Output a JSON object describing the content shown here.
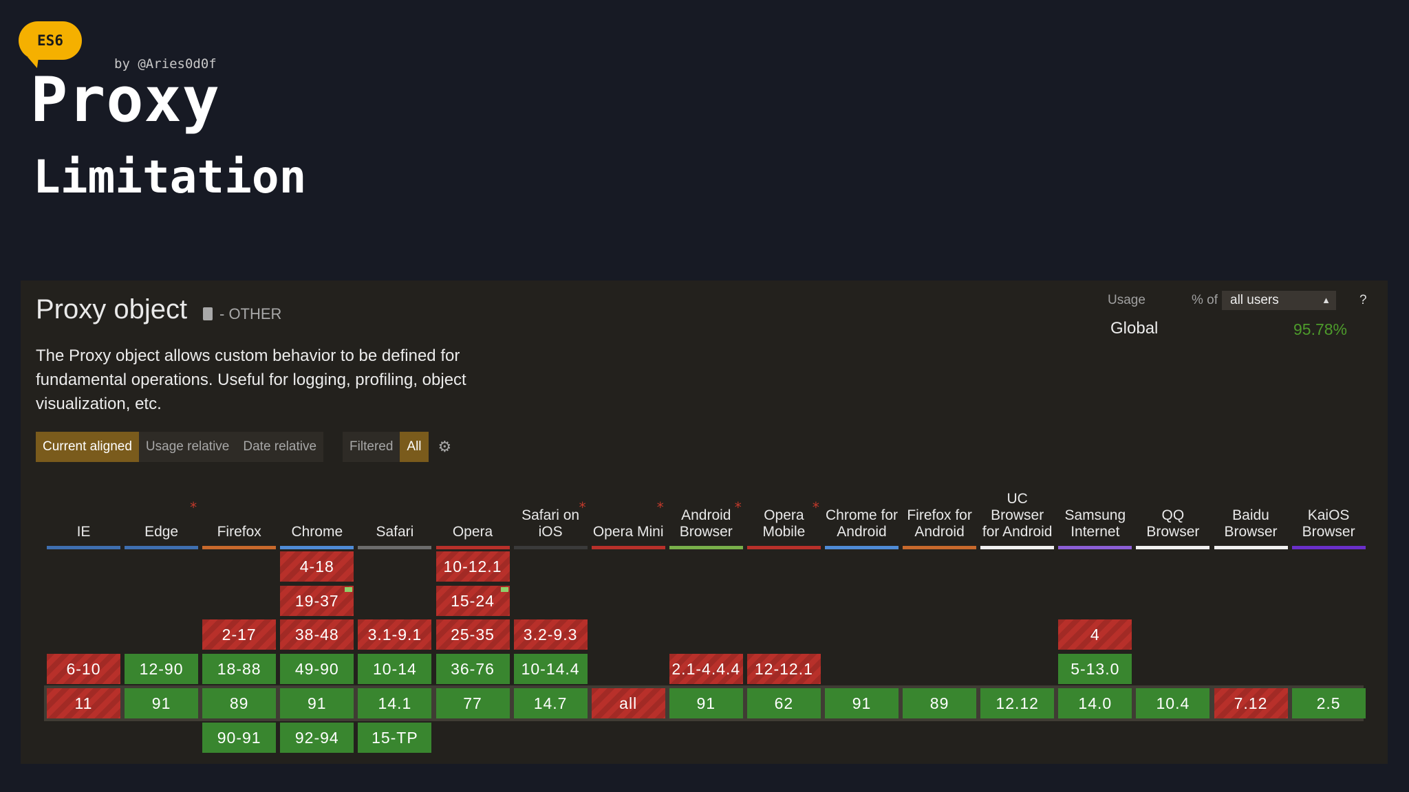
{
  "header": {
    "badge": "ES6",
    "byline": "by @Aries0d0f",
    "title": "Proxy",
    "subtitle": "Limitation"
  },
  "feature": {
    "title": "Proxy object",
    "category": "- OTHER",
    "description": "The Proxy object allows custom behavior to be defined for fundamental operations. Useful for logging, profiling, object visualization, etc."
  },
  "view_tabs": {
    "current_aligned": "Current aligned",
    "usage_relative": "Usage relative",
    "date_relative": "Date relative",
    "filtered": "Filtered",
    "all": "All"
  },
  "usage": {
    "label": "Usage",
    "pct_of": "% of",
    "selected": "all users",
    "help": "?",
    "global_label": "Global",
    "global_value": "95.78%"
  },
  "colors": {
    "supported": "#39862f",
    "unsupported": "#b8302a",
    "accent": "#f5b000",
    "usage_value": "#4d9b2b"
  },
  "browsers": [
    {
      "name": "IE",
      "star": false,
      "bar": "#3f6fb0",
      "cells": [
        null,
        null,
        null,
        {
          "v": "6-10",
          "s": "n"
        },
        {
          "v": "11",
          "s": "n"
        },
        null
      ]
    },
    {
      "name": "Edge",
      "star": true,
      "bar": "#3f6fb0",
      "cells": [
        null,
        null,
        null,
        {
          "v": "12-90",
          "s": "y"
        },
        {
          "v": "91",
          "s": "y"
        },
        null
      ]
    },
    {
      "name": "Firefox",
      "star": false,
      "bar": "#c8692c",
      "cells": [
        null,
        null,
        {
          "v": "2-17",
          "s": "n"
        },
        {
          "v": "18-88",
          "s": "y"
        },
        {
          "v": "89",
          "s": "y"
        },
        {
          "v": "90-91",
          "s": "y"
        }
      ]
    },
    {
      "name": "Chrome",
      "star": false,
      "bar": "#4f8bd6",
      "cells": [
        {
          "v": "4-18",
          "s": "n"
        },
        {
          "v": "19-37",
          "s": "n",
          "flag": true
        },
        {
          "v": "38-48",
          "s": "n"
        },
        {
          "v": "49-90",
          "s": "y"
        },
        {
          "v": "91",
          "s": "y"
        },
        {
          "v": "92-94",
          "s": "y"
        }
      ]
    },
    {
      "name": "Safari",
      "star": false,
      "bar": "#6c6c6c",
      "cells": [
        null,
        null,
        {
          "v": "3.1-9.1",
          "s": "n"
        },
        {
          "v": "10-14",
          "s": "y"
        },
        {
          "v": "14.1",
          "s": "y"
        },
        {
          "v": "15-TP",
          "s": "y"
        }
      ]
    },
    {
      "name": "Opera",
      "star": false,
      "bar": "#b8302a",
      "cells": [
        {
          "v": "10-12.1",
          "s": "n"
        },
        {
          "v": "15-24",
          "s": "n",
          "flag": true
        },
        {
          "v": "25-35",
          "s": "n"
        },
        {
          "v": "36-76",
          "s": "y"
        },
        {
          "v": "77",
          "s": "y"
        },
        null
      ]
    },
    {
      "name": "Safari on iOS",
      "star": true,
      "bar": "#3a3a3a",
      "cells": [
        null,
        null,
        {
          "v": "3.2-9.3",
          "s": "n"
        },
        {
          "v": "10-14.4",
          "s": "y"
        },
        {
          "v": "14.7",
          "s": "y"
        },
        null
      ]
    },
    {
      "name": "Opera Mini",
      "star": true,
      "bar": "#b8302a",
      "cells": [
        null,
        null,
        null,
        null,
        {
          "v": "all",
          "s": "n"
        },
        null
      ]
    },
    {
      "name": "Android Browser",
      "star": true,
      "bar": "#79b04a",
      "cells": [
        null,
        null,
        null,
        {
          "v": "2.1-4.4.4",
          "s": "n"
        },
        {
          "v": "91",
          "s": "y"
        },
        null
      ]
    },
    {
      "name": "Opera Mobile",
      "star": true,
      "bar": "#b8302a",
      "cells": [
        null,
        null,
        null,
        {
          "v": "12-12.1",
          "s": "n"
        },
        {
          "v": "62",
          "s": "y"
        },
        null
      ]
    },
    {
      "name": "Chrome for Android",
      "star": false,
      "bar": "#4f8bd6",
      "cells": [
        null,
        null,
        null,
        null,
        {
          "v": "91",
          "s": "y"
        },
        null
      ]
    },
    {
      "name": "Firefox for Android",
      "star": false,
      "bar": "#c8692c",
      "cells": [
        null,
        null,
        null,
        null,
        {
          "v": "89",
          "s": "y"
        },
        null
      ]
    },
    {
      "name": "UC Browser for Android",
      "star": false,
      "bar": "#f0f0f0",
      "cells": [
        null,
        null,
        null,
        null,
        {
          "v": "12.12",
          "s": "y"
        },
        null
      ]
    },
    {
      "name": "Samsung Internet",
      "star": false,
      "bar": "#8c5fd6",
      "cells": [
        null,
        null,
        {
          "v": "4",
          "s": "n"
        },
        {
          "v": "5-13.0",
          "s": "y"
        },
        {
          "v": "14.0",
          "s": "y"
        },
        null
      ]
    },
    {
      "name": "QQ Browser",
      "star": false,
      "bar": "#f0f0f0",
      "cells": [
        null,
        null,
        null,
        null,
        {
          "v": "10.4",
          "s": "y"
        },
        null
      ]
    },
    {
      "name": "Baidu Browser",
      "star": false,
      "bar": "#f0f0f0",
      "cells": [
        null,
        null,
        null,
        null,
        {
          "v": "7.12",
          "s": "n"
        },
        null
      ]
    },
    {
      "name": "KaiOS Browser",
      "star": false,
      "bar": "#6a2fc9",
      "cells": [
        null,
        null,
        null,
        null,
        {
          "v": "2.5",
          "s": "y"
        },
        null
      ]
    }
  ]
}
